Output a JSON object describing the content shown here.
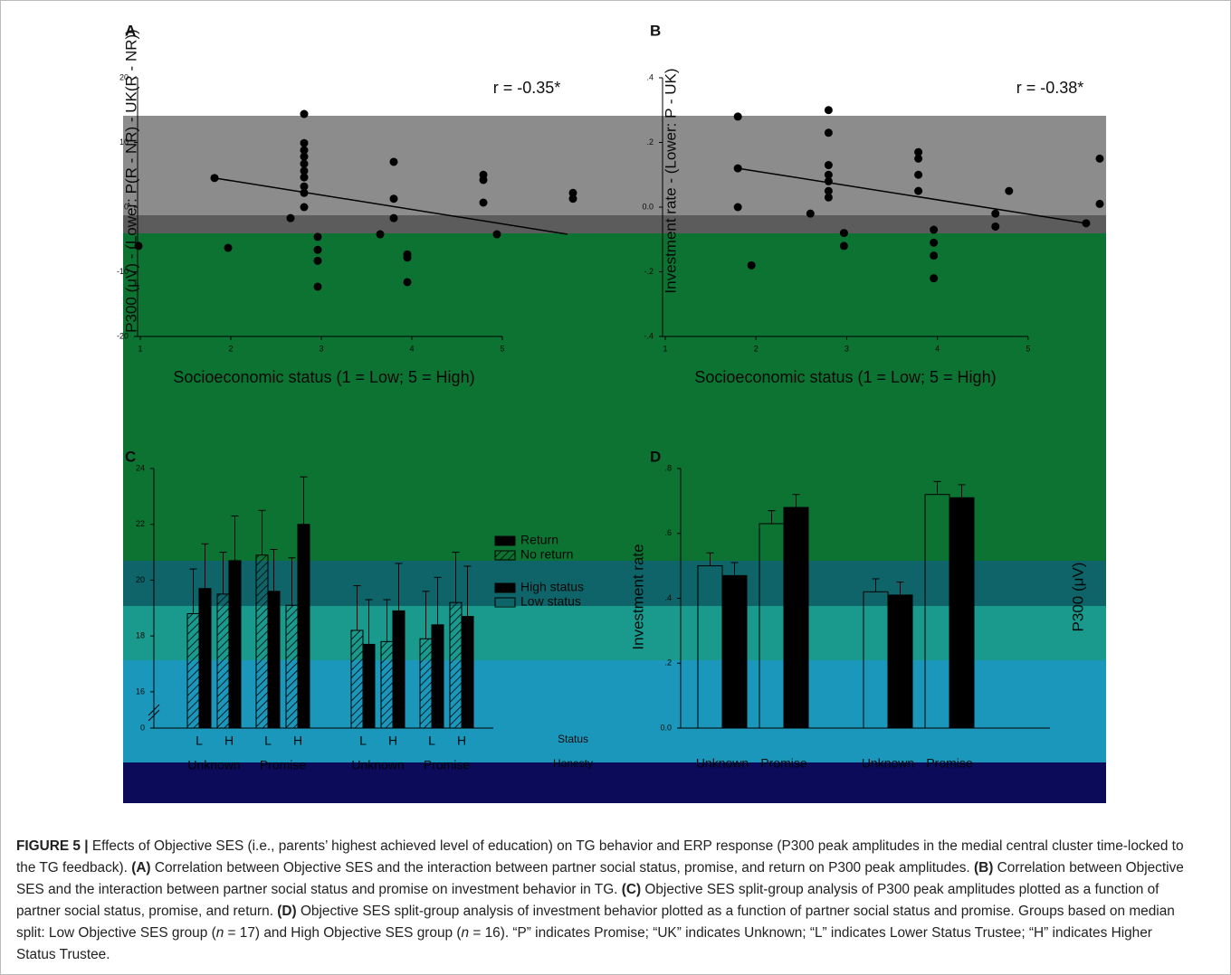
{
  "chart_data": [
    {
      "type": "scatter",
      "title": "A",
      "annotation": "r = -0.35*",
      "xlabel": "Socioeconomic status (1 = Low; 5 = High)",
      "ylabel": "P300 (μV) - (Lower: P(R - NR) - UK(R - NR))",
      "x": [
        0.98,
        1.82,
        1.97,
        2.66,
        2.81,
        2.81,
        2.81,
        2.81,
        2.81,
        2.81,
        2.81,
        2.81,
        2.81,
        2.81,
        2.96,
        2.96,
        2.96,
        2.96,
        3.65,
        3.8,
        3.8,
        3.8,
        3.95,
        3.95,
        3.95,
        4.79,
        4.79,
        4.79,
        4.94,
        5.78,
        5.78
      ],
      "y": [
        -6.0,
        4.5,
        -6.3,
        -1.7,
        14.4,
        9.9,
        8.8,
        7.8,
        6.7,
        5.6,
        4.6,
        3.2,
        2.2,
        0.0,
        -4.6,
        -6.6,
        -8.3,
        -12.3,
        -4.2,
        7.0,
        1.3,
        -1.7,
        -7.3,
        -7.8,
        -11.6,
        5.0,
        4.2,
        0.7,
        -4.2,
        2.2,
        1.3
      ],
      "fit_x": [
        1.82,
        5.72
      ],
      "fit_y": [
        4.5,
        -4.2
      ],
      "color": "#000000",
      "xlim": [
        0.97,
        5.85
      ],
      "xticks": [
        1,
        2,
        3,
        4,
        5
      ],
      "ylim": [
        -20,
        20
      ],
      "yticks": [
        -20,
        -10,
        0,
        10,
        20
      ]
    },
    {
      "type": "scatter",
      "title": "B",
      "annotation": "r = -0.38*",
      "xlabel": "Socioeconomic status (1 = Low; 5 = High)",
      "ylabel": "Investment rate - (Lower: P - UK)",
      "x": [
        1.8,
        1.8,
        1.8,
        1.95,
        2.6,
        2.8,
        2.8,
        2.8,
        2.8,
        2.8,
        2.8,
        2.8,
        2.97,
        2.97,
        3.79,
        3.79,
        3.79,
        3.79,
        3.96,
        3.96,
        3.96,
        3.96,
        4.64,
        4.64,
        4.79,
        5.64,
        5.79,
        5.79
      ],
      "y": [
        0.28,
        0.12,
        0.0,
        -0.18,
        -0.02,
        0.3,
        0.23,
        0.13,
        0.1,
        0.08,
        0.05,
        0.03,
        -0.08,
        -0.12,
        0.17,
        0.15,
        0.1,
        0.05,
        -0.07,
        -0.11,
        -0.15,
        -0.22,
        -0.02,
        -0.06,
        0.05,
        -0.05,
        0.15,
        0.01
      ],
      "fit_x": [
        1.8,
        5.64
      ],
      "fit_y": [
        0.12,
        -0.05
      ],
      "color": "#000000",
      "xlim": [
        0.97,
        5.84
      ],
      "xticks": [
        1,
        2,
        3,
        4,
        5
      ],
      "ylim": [
        -0.4,
        0.4
      ],
      "yticks": [
        {
          "value": -0.4,
          "label": "-.4"
        },
        {
          "value": -0.2,
          "label": "-.2"
        },
        {
          "value": 0,
          "label": "0.0"
        },
        {
          "value": 0.2,
          "label": ".2"
        },
        {
          "value": 0.4,
          "label": ".4"
        }
      ]
    },
    {
      "type": "bar",
      "title": "C",
      "ylabel": "P300 (μV)",
      "categories": [
        "L",
        "H",
        "L",
        "H",
        "L",
        "H",
        "L",
        "H"
      ],
      "groups": [
        "Unknown",
        "Promise",
        "Unknown",
        "Promise"
      ],
      "row_labels": [
        "Status",
        "Honesty"
      ],
      "series": [
        {
          "name": "Return",
          "color": "#000000",
          "values": [
            19.7,
            20.7,
            19.6,
            22.0,
            17.7,
            18.9,
            18.4,
            18.7
          ],
          "errors": [
            1.6,
            1.6,
            1.5,
            1.7,
            1.6,
            1.7,
            1.7,
            1.8
          ]
        },
        {
          "name": "No return",
          "color": "hatch",
          "values": [
            18.8,
            19.5,
            20.9,
            19.1,
            18.2,
            17.8,
            17.9,
            19.2
          ],
          "errors": [
            1.6,
            1.5,
            1.6,
            1.7,
            1.6,
            1.5,
            1.7,
            1.8
          ]
        }
      ],
      "ylim": [
        14.7,
        24
      ],
      "yticks": [
        0,
        16,
        18,
        20,
        22,
        24
      ],
      "axis_break": true
    },
    {
      "type": "bar",
      "title": "D",
      "ylabel": "Investment rate",
      "categories": [
        "Unknown",
        "Promise",
        "Unknown",
        "Promise"
      ],
      "series": [
        {
          "name": "High status",
          "color": "#000000",
          "values": [
            0.47,
            0.68,
            0.41,
            0.71
          ],
          "errors": [
            0.04,
            0.04,
            0.04,
            0.04
          ]
        },
        {
          "name": "Low status",
          "color": "#ffffff",
          "values": [
            0.5,
            0.63,
            0.42,
            0.72
          ],
          "errors": [
            0.04,
            0.04,
            0.04,
            0.04
          ]
        }
      ],
      "ylim": [
        0,
        0.8
      ],
      "yticks": [
        {
          "value": 0,
          "label": "0.0"
        },
        {
          "value": 0.2,
          "label": ".2"
        },
        {
          "value": 0.4,
          "label": ".4"
        },
        {
          "value": 0.6,
          "label": ".6"
        },
        {
          "value": 0.8,
          "label": ".8"
        }
      ]
    }
  ],
  "caption": {
    "parts": [
      "FIGURE 5 |",
      " Effects of Objective SES (i.e., parents’ highest achieved level of education) on TG behavior and ERP response (P300 peak amplitudes in the medial central cluster time-locked to the TG feedback). ",
      "(A)",
      " Correlation between Objective SES and the interaction between partner social status, promise, and return on P300 peak amplitudes. ",
      "(B)",
      " Correlation between Objective SES and the interaction between partner social status and promise on investment behavior in TG. ",
      "(C)",
      " Objective SES split-group analysis of P300 peak amplitudes plotted as a function of partner social status, promise, and return. ",
      "(D)",
      " Objective SES split-group analysis of investment behavior plotted as a function of partner social status and promise. Groups based on median split: Low Objective SES group (",
      "n",
      " = 17) and High Objective SES group (",
      "n",
      " = 16). “P” indicates Promise; “UK” indicates Unknown; “L” indicates Lower Status Trustee; “H” indicates Higher Status Trustee."
    ]
  }
}
